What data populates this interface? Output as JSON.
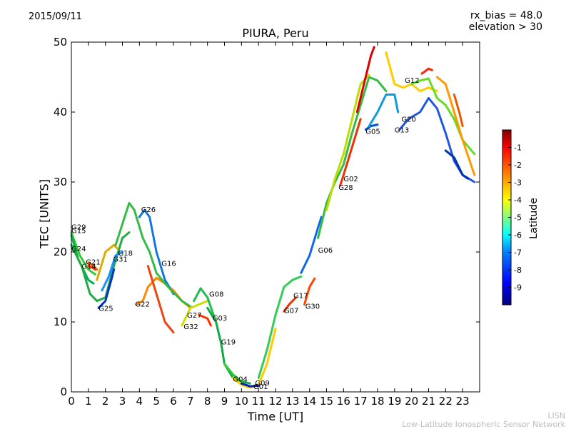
{
  "header": {
    "date": "2015/09/11",
    "rx_bias_line": "rx_bias = 48.0",
    "elevation_line": "elevation > 30"
  },
  "footer": {
    "line1": "LISN",
    "line2": "Low-Latitude Ionospheric Sensor Network"
  },
  "colorbar": {
    "label": "Latitude",
    "ticks": [
      -1,
      -2,
      -3,
      -4,
      -5,
      -6,
      -7,
      -8,
      -9
    ],
    "range": [
      -10,
      0
    ],
    "colormap": [
      "#00007f",
      "#0000ff",
      "#007fff",
      "#00ffff",
      "#7fff7f",
      "#ffff00",
      "#ff7f00",
      "#ff0000",
      "#7f0000"
    ]
  },
  "chart_data": {
    "type": "line",
    "title": "PIURA, Peru",
    "xlabel": "Time [UT]",
    "ylabel": "TEC [UNITS]",
    "xlim": [
      0,
      24
    ],
    "ylim": [
      0,
      50
    ],
    "xticks": [
      0,
      1,
      2,
      3,
      4,
      5,
      6,
      7,
      8,
      9,
      10,
      11,
      12,
      13,
      14,
      15,
      16,
      17,
      18,
      19,
      20,
      21,
      22,
      23
    ],
    "yticks": [
      0,
      10,
      20,
      30,
      40,
      50
    ],
    "grid": false,
    "series": [
      {
        "name": "G29",
        "color": "#33cc33",
        "points": [
          [
            0.0,
            22.8
          ],
          [
            0.5,
            19.5
          ],
          [
            1.0,
            17.5
          ],
          [
            1.4,
            16.8
          ]
        ]
      },
      {
        "name": "G15",
        "color": "#00b050",
        "points": [
          [
            0.0,
            22.4
          ],
          [
            0.4,
            19.0
          ],
          [
            1.0,
            16.0
          ],
          [
            1.3,
            15.5
          ]
        ]
      },
      {
        "name": "G24",
        "color": "#22aa44",
        "points": [
          [
            0.0,
            21.0
          ],
          [
            0.6,
            18.0
          ],
          [
            1.1,
            14.0
          ],
          [
            1.5,
            13.0
          ],
          [
            2.0,
            13.5
          ],
          [
            2.5,
            18.0
          ],
          [
            3.0,
            22.0
          ],
          [
            3.4,
            22.8
          ]
        ]
      },
      {
        "name": "G21",
        "color": "#ff6600",
        "points": [
          [
            1.0,
            18.5
          ],
          [
            1.3,
            18.0
          ],
          [
            1.5,
            17.5
          ]
        ]
      },
      {
        "name": "G14",
        "color": "#ff3300",
        "points": [
          [
            1.0,
            18.0
          ],
          [
            1.2,
            17.8
          ],
          [
            1.4,
            17.5
          ]
        ]
      },
      {
        "name": "G25",
        "color": "#0033cc",
        "points": [
          [
            1.6,
            12.0
          ],
          [
            2.0,
            13.0
          ],
          [
            2.4,
            16.5
          ],
          [
            2.5,
            17.5
          ]
        ]
      },
      {
        "name": "G31",
        "color": "#1a8fff",
        "points": [
          [
            1.8,
            14.5
          ],
          [
            2.2,
            16.5
          ],
          [
            2.6,
            19.5
          ],
          [
            3.0,
            20.0
          ]
        ]
      },
      {
        "name": "G18",
        "color": "#ddaa00",
        "points": [
          [
            1.5,
            16.0
          ],
          [
            2.0,
            20.0
          ],
          [
            2.5,
            21.0
          ],
          [
            2.7,
            20.5
          ]
        ]
      },
      {
        "name": "G22",
        "color": "#ff8800",
        "points": [
          [
            3.8,
            12.5
          ],
          [
            4.2,
            13.0
          ],
          [
            4.5,
            15.0
          ],
          [
            5.0,
            16.3
          ],
          [
            5.5,
            15.5
          ],
          [
            6.0,
            14.5
          ],
          [
            6.5,
            13.0
          ],
          [
            7.0,
            12.0
          ]
        ]
      },
      {
        "name": "G26",
        "color": "#1177dd",
        "points": [
          [
            4.0,
            25.0
          ],
          [
            4.3,
            26.0
          ],
          [
            4.6,
            25.0
          ],
          [
            5.0,
            20.0
          ],
          [
            5.5,
            16.0
          ],
          [
            6.0,
            14.0
          ]
        ]
      },
      {
        "name": "G16",
        "color": "#33bb44",
        "points": [
          [
            2.6,
            21.0
          ],
          [
            3.0,
            24.0
          ],
          [
            3.4,
            27.0
          ],
          [
            3.7,
            26.0
          ],
          [
            4.2,
            22.0
          ],
          [
            4.6,
            20.0
          ],
          [
            5.0,
            17.0
          ],
          [
            5.5,
            15.5
          ],
          [
            6.0,
            14.2
          ],
          [
            6.5,
            13.0
          ],
          [
            7.0,
            12.2
          ]
        ]
      },
      {
        "name": "G32",
        "color": "#ee4411",
        "points": [
          [
            4.5,
            18.0
          ],
          [
            5.0,
            14.0
          ],
          [
            5.5,
            10.0
          ],
          [
            6.0,
            8.5
          ]
        ]
      },
      {
        "name": "G27",
        "color": "#ccdd00",
        "points": [
          [
            6.5,
            9.5
          ],
          [
            7.0,
            12.0
          ],
          [
            7.5,
            12.5
          ],
          [
            8.0,
            13.0
          ]
        ]
      },
      {
        "name": "G08",
        "color": "#22bb55",
        "points": [
          [
            7.2,
            13.0
          ],
          [
            7.6,
            14.8
          ],
          [
            8.0,
            13.5
          ],
          [
            8.5,
            10.0
          ]
        ]
      },
      {
        "name": "G03",
        "color": "#ff3300",
        "points": [
          [
            7.5,
            11.0
          ],
          [
            8.0,
            10.5
          ],
          [
            8.2,
            9.5
          ]
        ]
      },
      {
        "name": "G19",
        "color": "#11aa44",
        "points": [
          [
            8.0,
            12.0
          ],
          [
            8.5,
            10.0
          ],
          [
            8.8,
            7.0
          ],
          [
            9.0,
            4.0
          ],
          [
            9.5,
            2.0
          ],
          [
            10.0,
            1.5
          ],
          [
            10.5,
            1.2
          ]
        ]
      },
      {
        "name": "G04",
        "color": "#33cc33",
        "points": [
          [
            9.0,
            4.0
          ],
          [
            9.5,
            2.5
          ],
          [
            10.0,
            1.5
          ]
        ]
      },
      {
        "name": "G09",
        "color": "#ffcc00",
        "points": [
          [
            9.5,
            2.0
          ],
          [
            10.0,
            1.0
          ],
          [
            10.5,
            0.6
          ],
          [
            11.0,
            1.0
          ],
          [
            11.5,
            4.0
          ],
          [
            12.0,
            9.0
          ]
        ]
      },
      {
        "name": "G01",
        "color": "#0022bb",
        "points": [
          [
            10.0,
            1.2
          ],
          [
            10.5,
            0.8
          ],
          [
            11.0,
            0.9
          ]
        ]
      },
      {
        "name": "G07",
        "color": "#ee3300",
        "points": [
          [
            12.5,
            11.5
          ],
          [
            12.8,
            12.5
          ],
          [
            13.2,
            13.5
          ]
        ]
      },
      {
        "name": "G17",
        "color": "#33cc55",
        "points": [
          [
            11.0,
            2.0
          ],
          [
            11.5,
            6.0
          ],
          [
            12.0,
            11.0
          ],
          [
            12.5,
            15.0
          ],
          [
            13.0,
            16.0
          ],
          [
            13.5,
            16.5
          ]
        ]
      },
      {
        "name": "G30",
        "color": "#ff4400",
        "points": [
          [
            13.7,
            12.5
          ],
          [
            14.0,
            15.0
          ],
          [
            14.3,
            16.2
          ]
        ]
      },
      {
        "name": "G06",
        "color": "#1166ee",
        "points": [
          [
            13.5,
            17.0
          ],
          [
            14.0,
            19.5
          ],
          [
            14.5,
            23.5
          ],
          [
            14.7,
            25.0
          ]
        ]
      },
      {
        "name": "G28",
        "color": "#ee3300",
        "points": [
          [
            15.8,
            29.5
          ],
          [
            16.0,
            31.0
          ],
          [
            16.5,
            35.0
          ],
          [
            17.0,
            39.0
          ]
        ]
      },
      {
        "name": "G02",
        "color": "#33bb44",
        "points": [
          [
            14.5,
            22.0
          ],
          [
            15.0,
            27.0
          ],
          [
            15.5,
            30.0
          ],
          [
            16.0,
            32.5
          ],
          [
            16.5,
            37.0
          ],
          [
            17.0,
            41.0
          ],
          [
            17.5,
            45.0
          ],
          [
            18.0,
            44.5
          ],
          [
            18.5,
            43.0
          ]
        ]
      },
      {
        "name": "G05",
        "color": "#0055cc",
        "points": [
          [
            17.3,
            37.5
          ],
          [
            17.6,
            38.0
          ],
          [
            18.0,
            38.2
          ]
        ]
      },
      {
        "name": "G20",
        "color": "#1199dd",
        "points": [
          [
            17.5,
            38.0
          ],
          [
            18.0,
            40.0
          ],
          [
            18.5,
            42.5
          ],
          [
            19.0,
            42.5
          ],
          [
            19.2,
            40.0
          ]
        ]
      },
      {
        "name": "G13",
        "color": "#2255dd",
        "points": [
          [
            19.3,
            37.5
          ],
          [
            19.8,
            39.0
          ],
          [
            20.5,
            40.0
          ],
          [
            21.0,
            42.0
          ],
          [
            21.5,
            40.5
          ],
          [
            22.0,
            37.0
          ],
          [
            22.5,
            33.0
          ],
          [
            23.0,
            31.0
          ],
          [
            23.7,
            30.0
          ]
        ]
      },
      {
        "name": "G12",
        "color": "#ffcc00",
        "points": [
          [
            18.5,
            48.5
          ],
          [
            19.0,
            44.0
          ],
          [
            19.5,
            43.5
          ],
          [
            20.0,
            44.0
          ],
          [
            20.5,
            43.0
          ],
          [
            21.0,
            43.5
          ],
          [
            21.5,
            43.0
          ]
        ]
      },
      {
        "name": "",
        "color": "#bbdd00",
        "points": [
          [
            15.0,
            26.0
          ],
          [
            15.5,
            30.5
          ],
          [
            16.0,
            34.0
          ],
          [
            16.5,
            39.0
          ],
          [
            17.0,
            44.0
          ],
          [
            17.5,
            45.3
          ]
        ]
      },
      {
        "name": "",
        "color": "#dd0000",
        "points": [
          [
            16.8,
            40.0
          ],
          [
            17.2,
            44.0
          ],
          [
            17.6,
            48.0
          ],
          [
            17.8,
            49.3
          ]
        ]
      },
      {
        "name": "",
        "color": "#66dd22",
        "points": [
          [
            20.0,
            44.0
          ],
          [
            20.5,
            44.5
          ],
          [
            21.0,
            44.8
          ],
          [
            21.5,
            42.0
          ],
          [
            22.0,
            41.0
          ],
          [
            22.5,
            39.0
          ],
          [
            23.0,
            36.0
          ],
          [
            23.7,
            34.0
          ]
        ]
      },
      {
        "name": "",
        "color": "#ff2200",
        "points": [
          [
            20.6,
            45.5
          ],
          [
            21.0,
            46.2
          ],
          [
            21.2,
            46.0
          ]
        ]
      },
      {
        "name": "",
        "color": "#ff9900",
        "points": [
          [
            21.5,
            45.0
          ],
          [
            22.0,
            44.0
          ],
          [
            22.5,
            40.0
          ],
          [
            23.0,
            36.0
          ],
          [
            23.7,
            31.0
          ]
        ]
      },
      {
        "name": "",
        "color": "#0033aa",
        "points": [
          [
            22.0,
            34.5
          ],
          [
            22.5,
            33.5
          ],
          [
            23.0,
            31.0
          ],
          [
            23.3,
            30.5
          ]
        ]
      },
      {
        "name": "",
        "color": "#ee5500",
        "points": [
          [
            22.5,
            42.5
          ],
          [
            22.8,
            40.0
          ],
          [
            23.0,
            38.0
          ]
        ]
      }
    ],
    "labels": [
      {
        "text": "G29",
        "x": 0.0,
        "y": 23.2
      },
      {
        "text": "G15",
        "x": 0.0,
        "y": 22.7
      },
      {
        "text": "G24",
        "x": 0.0,
        "y": 20.1
      },
      {
        "text": "G21",
        "x": 0.85,
        "y": 18.2
      },
      {
        "text": "G14",
        "x": 0.6,
        "y": 17.6
      },
      {
        "text": "G18",
        "x": 2.75,
        "y": 19.5
      },
      {
        "text": "G31",
        "x": 2.45,
        "y": 18.6
      },
      {
        "text": "G26",
        "x": 4.1,
        "y": 25.7
      },
      {
        "text": "G16",
        "x": 5.3,
        "y": 18.0
      },
      {
        "text": "G25",
        "x": 1.6,
        "y": 11.6
      },
      {
        "text": "G22",
        "x": 3.75,
        "y": 12.2
      },
      {
        "text": "G27",
        "x": 6.8,
        "y": 10.6
      },
      {
        "text": "G32",
        "x": 6.6,
        "y": 9.0
      },
      {
        "text": "G08",
        "x": 8.1,
        "y": 13.6
      },
      {
        "text": "G03",
        "x": 8.3,
        "y": 10.2
      },
      {
        "text": "G19",
        "x": 8.8,
        "y": 6.8
      },
      {
        "text": "G04",
        "x": 9.5,
        "y": 1.5
      },
      {
        "text": "G09",
        "x": 10.8,
        "y": 0.9
      },
      {
        "text": "G01",
        "x": 10.7,
        "y": 0.4
      },
      {
        "text": "G07",
        "x": 12.5,
        "y": 11.3
      },
      {
        "text": "G17",
        "x": 13.05,
        "y": 13.4
      },
      {
        "text": "G30",
        "x": 13.75,
        "y": 11.9
      },
      {
        "text": "G06",
        "x": 14.5,
        "y": 19.9
      },
      {
        "text": "G02",
        "x": 16.0,
        "y": 30.1
      },
      {
        "text": "G28",
        "x": 15.7,
        "y": 28.9
      },
      {
        "text": "G05",
        "x": 17.3,
        "y": 36.9
      },
      {
        "text": "G20",
        "x": 19.4,
        "y": 38.6
      },
      {
        "text": "G13",
        "x": 19.0,
        "y": 37.1
      },
      {
        "text": "G12",
        "x": 19.6,
        "y": 44.2
      }
    ]
  }
}
